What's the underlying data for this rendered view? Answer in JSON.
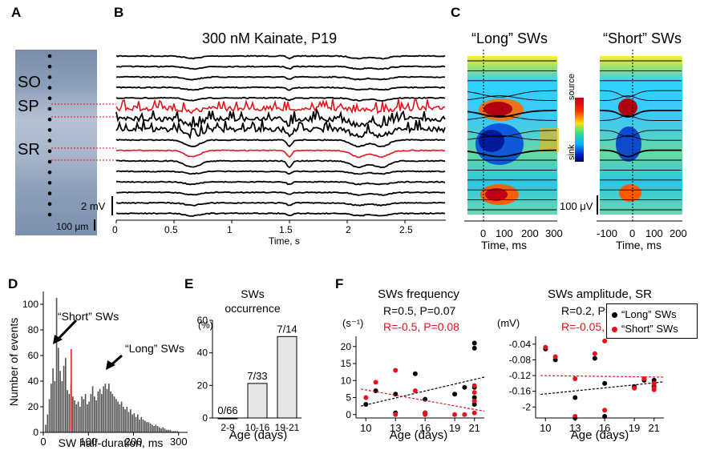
{
  "panels": {
    "A": {
      "label": "A",
      "layers": [
        "SO",
        "SP",
        "SR"
      ],
      "scale": "100 μm"
    },
    "B": {
      "label": "B",
      "title": "300 nM Kainate, P19",
      "xlabel": "Time, s",
      "xticks": [
        "0",
        "0.5",
        "1",
        "1.5",
        "2",
        "2.5"
      ],
      "scale": "2 mV"
    },
    "C": {
      "label": "C",
      "title_long": "“Long” SWs",
      "title_short": "“Short” SWs",
      "colorbar_top": "source",
      "colorbar_bottom": "sink",
      "scale": "100 μV",
      "xticks_long": [
        "0",
        "100",
        "200",
        "300"
      ],
      "xticks_short": [
        "-100",
        "0",
        "100",
        "200"
      ],
      "xlabel": "Time, ms"
    },
    "D": {
      "label": "D",
      "annot_short": "“Short” SWs",
      "annot_long": "“Long” SWs"
    },
    "E": {
      "label": "E"
    },
    "F": {
      "label": "F",
      "legend_long": "“Long” SWs",
      "legend_short": "“Short” SWs",
      "freq_stats_black": "R=0.5, P=0.07",
      "freq_stats_red": "R=-0.5, P=0.08",
      "amp_stats_black": "R=0.2, P=0.5",
      "amp_stats_red": "R=-0.05, P=0.5"
    }
  },
  "colors": {
    "black": "#000000",
    "red": "#e8121b",
    "bar": "#555555",
    "ebar": "#e6e6e6"
  },
  "chart_data": [
    {
      "type": "bar",
      "id": "D",
      "xlabel": "SW half-duration, ms",
      "ylabel": "Number of events",
      "xlim": [
        0,
        320
      ],
      "ylim": [
        0,
        110
      ],
      "xticks": [
        0,
        100,
        200,
        300
      ],
      "yticks": [
        0,
        20,
        40,
        60,
        80,
        100
      ],
      "bin_width": 4,
      "bin_starts": [
        4,
        8,
        12,
        16,
        20,
        24,
        28,
        32,
        36,
        40,
        44,
        48,
        52,
        56,
        60,
        64,
        68,
        72,
        76,
        80,
        84,
        88,
        92,
        96,
        100,
        104,
        108,
        112,
        116,
        120,
        124,
        128,
        132,
        136,
        140,
        144,
        148,
        152,
        156,
        160,
        164,
        168,
        172,
        176,
        180,
        184,
        188,
        192,
        196,
        200,
        204,
        208,
        212,
        216,
        220,
        224,
        228,
        232,
        236,
        240,
        244,
        248,
        252,
        256,
        260,
        264,
        268,
        272,
        276,
        280,
        284,
        288,
        292,
        296
      ],
      "values": [
        6,
        14,
        26,
        38,
        50,
        40,
        105,
        66,
        48,
        40,
        52,
        58,
        33,
        30,
        38,
        28,
        25,
        22,
        24,
        20,
        28,
        26,
        30,
        22,
        24,
        30,
        36,
        28,
        25,
        32,
        34,
        30,
        36,
        38,
        34,
        38,
        32,
        30,
        28,
        26,
        24,
        22,
        24,
        20,
        18,
        20,
        16,
        18,
        14,
        15,
        12,
        14,
        10,
        12,
        10,
        9,
        8,
        8,
        7,
        6,
        5,
        6,
        5,
        4,
        3,
        4,
        3,
        2,
        2,
        2,
        1,
        1,
        1,
        1
      ],
      "threshold_x": 62
    },
    {
      "type": "bar",
      "id": "E",
      "title": "SWs occurrence",
      "ylabel": "(%)",
      "xlabel": "Age (days)",
      "categories": [
        "2-9",
        "10-16",
        "19-21"
      ],
      "values": [
        0,
        21.2,
        50
      ],
      "data_labels": [
        "0/66",
        "7/33",
        "7/14"
      ],
      "ylim": [
        0,
        60
      ],
      "yticks": [
        0,
        20,
        40,
        60
      ]
    },
    {
      "type": "scatter",
      "id": "F-frequency",
      "title": "SWs frequency",
      "ylabel": "(s⁻¹)",
      "xlabel": "Age (days)",
      "xticks": [
        10,
        13,
        16,
        19,
        21
      ],
      "xlim": [
        9,
        22
      ],
      "yticks": [
        0,
        5,
        10,
        15,
        20
      ],
      "ylim": [
        -1,
        23
      ],
      "series": [
        {
          "name": "“Long” SWs",
          "color": "#000000",
          "x": [
            10,
            11,
            13,
            13,
            15,
            16,
            16,
            19,
            20,
            21,
            21,
            21,
            21,
            21
          ],
          "y": [
            3,
            7,
            6,
            0.5,
            12,
            4.5,
            0.5,
            6,
            8,
            21,
            19.5,
            8,
            5,
            3
          ],
          "trend": [
            [
              9.5,
              2.5
            ],
            [
              22,
              11
            ]
          ]
        },
        {
          "name": "“Short” SWs",
          "color": "#e8121b",
          "x": [
            10,
            11,
            13,
            13,
            15,
            16,
            16,
            19,
            20,
            21,
            21,
            21,
            21
          ],
          "y": [
            5,
            9.5,
            13,
            0,
            7,
            0.5,
            0,
            0,
            0,
            8.5,
            6.5,
            4,
            0.5
          ],
          "trend": [
            [
              9.5,
              7.5
            ],
            [
              22,
              1
            ]
          ]
        }
      ]
    },
    {
      "type": "scatter",
      "id": "F-amplitude",
      "title": "SWs amplitude, SR",
      "ylabel": "(mV)",
      "xlabel": "Age (days)",
      "xticks": [
        10,
        13,
        16,
        19,
        21
      ],
      "xlim": [
        9,
        22
      ],
      "yticks": [
        "-0.04",
        "-0.08",
        "-0.12",
        "-0.16",
        "-2"
      ],
      "series": [
        {
          "name": "“Long” SWs",
          "color": "#000000",
          "x": [
            10,
            11,
            13,
            13,
            15,
            16,
            16,
            19,
            20,
            21,
            21,
            21
          ],
          "y_levels": [
            0.3,
            1.0,
            3.4,
            4.7,
            0.9,
            2.5,
            4.6,
            2.7,
            2.3,
            2.3,
            2.5,
            2.7
          ],
          "trend_levels": [
            [
              9.5,
              3.2
            ],
            [
              22,
              2.4
            ]
          ]
        },
        {
          "name": "“Short” SWs",
          "color": "#e8121b",
          "x": [
            10,
            11,
            13,
            13,
            15,
            16,
            16,
            19,
            20,
            21,
            21,
            21
          ],
          "y_levels": [
            0.2,
            0.8,
            2.2,
            4.6,
            0.6,
            -0.2,
            4.2,
            2.8,
            2.2,
            2.5,
            2.8,
            2.9
          ],
          "trend_levels": [
            [
              9.5,
              2.0
            ],
            [
              22,
              2.1
            ]
          ]
        }
      ]
    }
  ]
}
